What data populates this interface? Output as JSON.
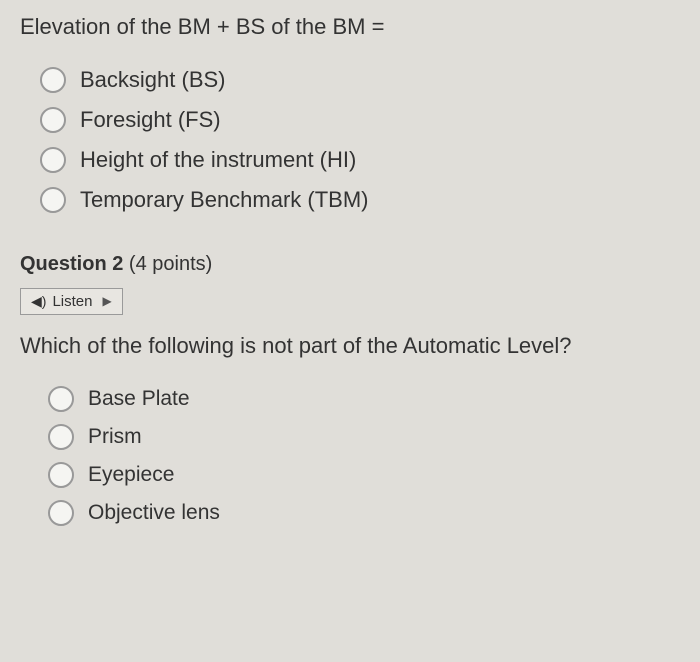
{
  "question1": {
    "text": "Elevation of the BM + BS of the BM =",
    "options": [
      "Backsight (BS)",
      "Foresight (FS)",
      "Height of the instrument (HI)",
      "Temporary Benchmark (TBM)"
    ]
  },
  "question2": {
    "label": "Question 2",
    "points": "(4 points)",
    "listen_label": "Listen",
    "text": "Which of the following is not part of the Automatic Level?",
    "options": [
      "Base Plate",
      "Prism",
      "Eyepiece",
      "Objective lens"
    ]
  },
  "colors": {
    "background": "#e0ded9",
    "text": "#333",
    "radio_border": "#999"
  }
}
